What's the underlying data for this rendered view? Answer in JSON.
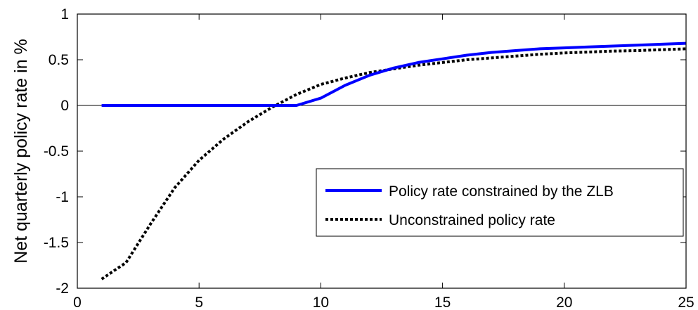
{
  "chart_data": {
    "type": "line",
    "title": "",
    "xlabel": "",
    "ylabel": "Net quarterly policy rate in %",
    "xlim": [
      0,
      25
    ],
    "ylim": [
      -2,
      1
    ],
    "xticks": [
      0,
      5,
      10,
      15,
      20,
      25
    ],
    "yticks": [
      -2,
      -1.5,
      -1,
      -0.5,
      0,
      0.5,
      1
    ],
    "xtick_labels": [
      "0",
      "5",
      "10",
      "15",
      "20",
      "25"
    ],
    "ytick_labels": [
      "-2",
      "-1.5",
      "-1",
      "-0.5",
      "0",
      "0.5",
      "1"
    ],
    "grid": false,
    "zero_line": true,
    "legend_position": "lower-right",
    "x": [
      1,
      2,
      3,
      4,
      5,
      6,
      7,
      8,
      9,
      10,
      11,
      12,
      13,
      14,
      15,
      16,
      17,
      18,
      19,
      20,
      21,
      22,
      23,
      24,
      25
    ],
    "series": [
      {
        "name": "Policy rate constrained by the ZLB",
        "color": "#0000ff",
        "style": "solid",
        "values": [
          0,
          0,
          0,
          0,
          0,
          0,
          0,
          0,
          0,
          0.08,
          0.22,
          0.33,
          0.41,
          0.47,
          0.51,
          0.55,
          0.58,
          0.6,
          0.62,
          0.63,
          0.64,
          0.65,
          0.66,
          0.67,
          0.68
        ]
      },
      {
        "name": "Unconstrained policy rate",
        "color": "#000000",
        "style": "dotted",
        "values": [
          -1.9,
          -1.72,
          -1.3,
          -0.9,
          -0.6,
          -0.37,
          -0.18,
          -0.02,
          0.12,
          0.23,
          0.3,
          0.36,
          0.4,
          0.44,
          0.47,
          0.5,
          0.52,
          0.54,
          0.56,
          0.575,
          0.585,
          0.595,
          0.6,
          0.61,
          0.62
        ]
      }
    ]
  }
}
